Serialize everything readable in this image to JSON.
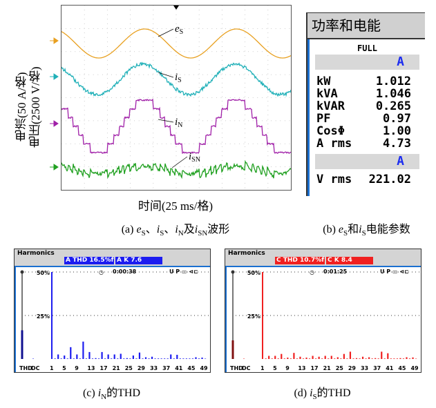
{
  "scope": {
    "ylabel_current": "电流(50 A/格)",
    "ylabel_voltage": "电压(2500 V/格)",
    "xlabel": "时间(25 ms/格)",
    "channels": [
      {
        "label": "e",
        "sub": "S",
        "color": "#e8a020"
      },
      {
        "label": "i",
        "sub": "S",
        "color": "#20b0b8"
      },
      {
        "label": "i",
        "sub": "N",
        "color": "#a020a8"
      },
      {
        "label": "i",
        "sub": "SN",
        "color": "#20a020"
      }
    ]
  },
  "captions": {
    "a": {
      "prefix": "(a) ",
      "e": "e",
      "eS": "S",
      "sep1": "、",
      "i1": "i",
      "i1S": "S",
      "sep2": "、",
      "i2": "i",
      "i2N": "N",
      "and": "及",
      "i3": "i",
      "i3S": "SN",
      "suffix": "波形"
    },
    "b": {
      "prefix": "(b) ",
      "e": "e",
      "eS": "S",
      "and": "和",
      "i": "i",
      "iS": "S",
      "suffix": "电能参数"
    },
    "c": {
      "prefix": "(c) ",
      "i": "i",
      "sub": "N",
      "suffix": "的THD"
    },
    "d": {
      "prefix": "(d) ",
      "i": "i",
      "sub": "S",
      "suffix": "的THD"
    }
  },
  "meter": {
    "title": "功率和电能",
    "mode": "FULL",
    "channel": "A",
    "rows": [
      {
        "k": "kW",
        "v": "1.012"
      },
      {
        "k": "kVA",
        "v": "1.046"
      },
      {
        "k": "kVAR",
        "v": "0.265"
      },
      {
        "k": "PF",
        "v": "0.97"
      },
      {
        "k": "CosΦ",
        "v": "1.00"
      },
      {
        "k": "A rms",
        "v": "4.73"
      }
    ],
    "channel2": "A",
    "vrms": {
      "k": "V rms",
      "v": "221.02"
    }
  },
  "harmonics": [
    {
      "title": "Harmonics",
      "thd_tag": "A THD 16.5%f",
      "k_tag": "A K      7.6",
      "time": "0:00:38",
      "status": "U P ▭ ⊲⊏",
      "color": "#1c1cf0",
      "thd_dark": "#101090",
      "y50": "50%",
      "y25": "25%",
      "thd": 16.5,
      "dc": 0.2,
      "values": [
        50,
        0.3,
        2.6,
        0.3,
        2,
        0.3,
        6.8,
        0.3,
        2.6,
        0.3,
        10,
        0.3,
        4,
        0.3,
        0.5,
        0.3,
        4,
        0.3,
        2.6,
        0.3,
        2.6,
        0.3,
        3,
        0.3,
        0.5,
        0.3,
        2,
        0.3,
        3.7,
        0.3,
        1,
        0.3,
        1.3,
        0.3,
        0.3,
        0.3,
        0.3,
        0.3,
        2.6,
        0.3,
        2.4,
        0.3,
        0.3,
        0.3,
        0.3,
        0.3,
        1,
        0.3,
        0.8,
        0.2
      ]
    },
    {
      "title": "Harmonics",
      "thd_tag": "C THD 10.7%f",
      "k_tag": "C K       8.4",
      "time": "0:01:25",
      "status": "U P ▭ ⊲⊏",
      "color": "#f02020",
      "thd_dark": "#801010",
      "y50": "50%",
      "y25": "25%",
      "thd": 10.7,
      "dc": 0.2,
      "values": [
        50,
        0.3,
        1.8,
        0.3,
        1.8,
        0.3,
        2.9,
        0.3,
        0.8,
        0.3,
        3.5,
        0.3,
        1.3,
        0.3,
        0.8,
        0.3,
        1.8,
        0.3,
        1.3,
        0.3,
        1.8,
        0.3,
        1.8,
        0.3,
        1,
        0.3,
        2.9,
        0.3,
        4.2,
        0.3,
        0.5,
        0.3,
        1.3,
        0.3,
        1,
        0.3,
        0.5,
        0.3,
        4.2,
        0.3,
        3.3,
        0.3,
        0.3,
        0.3,
        0.5,
        0.3,
        1,
        0.3,
        0.9,
        0.2
      ]
    }
  ],
  "harm_xticks": [
    "THD",
    "DC",
    "1",
    "5",
    "9",
    "13",
    "17",
    "21",
    "25",
    "29",
    "33",
    "37",
    "41",
    "45",
    "49"
  ]
}
